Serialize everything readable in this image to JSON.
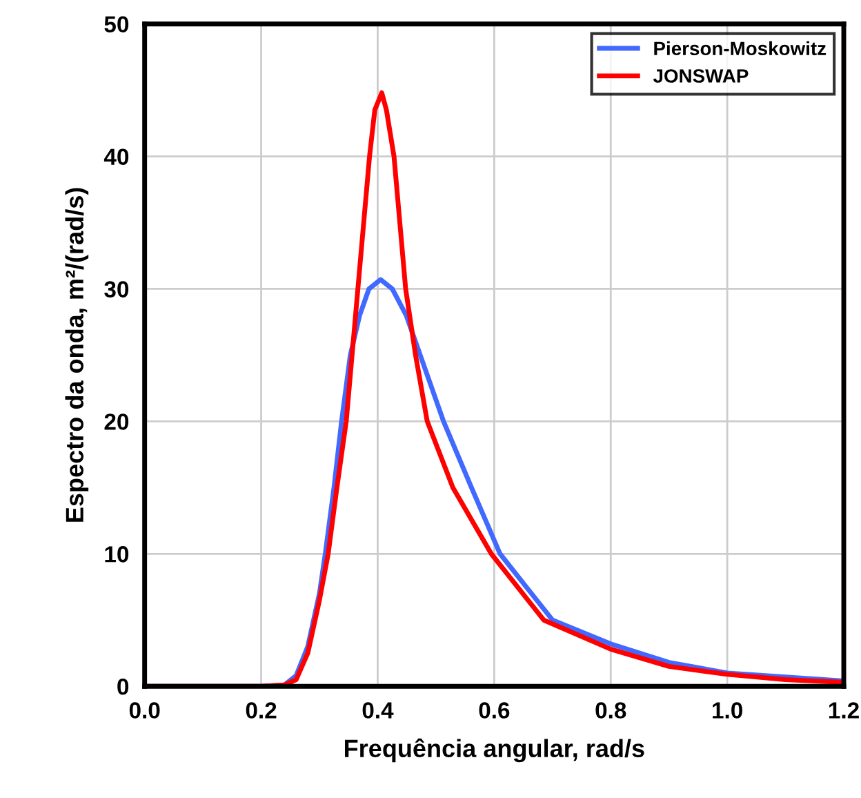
{
  "chart_data": {
    "type": "line",
    "xlabel": "Frequência angular, rad/s",
    "ylabel": "Espectro da onda, m²/(rad/s)",
    "xlim": [
      0,
      1.2
    ],
    "ylim": [
      0,
      50
    ],
    "xticks": [
      {
        "value": 0,
        "label": "0.0"
      },
      {
        "value": 0.2,
        "label": "0.2"
      },
      {
        "value": 0.4,
        "label": "0.4"
      },
      {
        "value": 0.6,
        "label": "0.6"
      },
      {
        "value": 0.8,
        "label": "0.8"
      },
      {
        "value": 1.0,
        "label": "1.0"
      },
      {
        "value": 1.2,
        "label": "1.2"
      }
    ],
    "yticks": [
      0,
      10,
      20,
      30,
      40,
      50
    ],
    "grid": true,
    "legend": "top right",
    "line_style": "solid",
    "series": [
      {
        "name": "Pierson-Moskowitz",
        "color": "#4169ff",
        "x": [
          0,
          0.2,
          0.24,
          0.26,
          0.28,
          0.3,
          0.31,
          0.325,
          0.338,
          0.353,
          0.369,
          0.385,
          0.405,
          0.425,
          0.449,
          0.473,
          0.513,
          0.561,
          0.61,
          0.7,
          0.8,
          0.9,
          1.0,
          1.1,
          1.2
        ],
        "values": [
          0,
          0,
          0.1,
          0.8,
          3,
          7,
          10,
          15,
          20,
          25,
          28,
          30,
          30.7,
          30,
          28,
          25,
          20,
          15,
          10,
          5,
          3.2,
          1.8,
          1.0,
          0.7,
          0.4
        ]
      },
      {
        "name": "JONSWAP",
        "color": "#ff0000",
        "x": [
          0,
          0.2,
          0.24,
          0.26,
          0.28,
          0.3,
          0.315,
          0.33,
          0.346,
          0.356,
          0.366,
          0.376,
          0.386,
          0.395,
          0.407,
          0.415,
          0.428,
          0.438,
          0.448,
          0.465,
          0.485,
          0.529,
          0.595,
          0.685,
          0.8,
          0.9,
          1.0,
          1.1,
          1.2
        ],
        "values": [
          0,
          0,
          0.1,
          0.5,
          2.5,
          6.5,
          10,
          15,
          20,
          25,
          30,
          35,
          40,
          43.5,
          44.8,
          43.5,
          40,
          35,
          30,
          25,
          20,
          15,
          10,
          5,
          2.8,
          1.5,
          0.9,
          0.5,
          0.3
        ]
      }
    ]
  }
}
